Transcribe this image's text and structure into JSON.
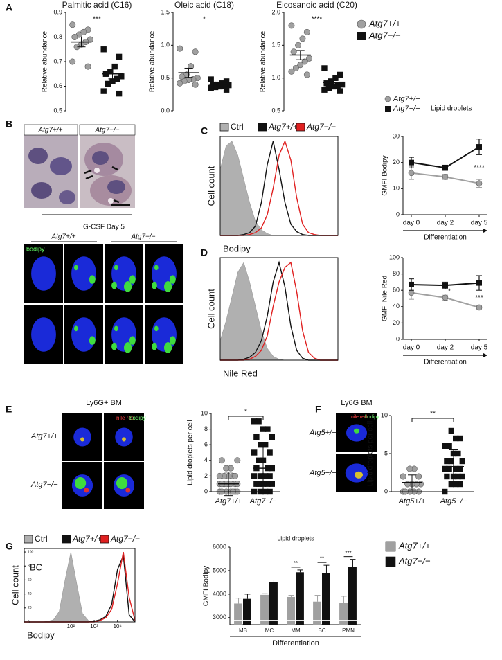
{
  "panel_labels": [
    "A",
    "B",
    "C",
    "D",
    "E",
    "F",
    "G"
  ],
  "figure_text": {
    "B_genotypes": [
      "Atg7+/+",
      "Atg7−/−"
    ],
    "B_caption": "G-CSF Day 5",
    "B_confocal_genotypes": [
      "Atg7+/+",
      "Atg7−/−"
    ],
    "B_stain": "bodipy",
    "E_title": "Ly6G+ BM",
    "E_stains": [
      "nile red",
      "bodipy"
    ],
    "E_rows": [
      "Atg7+/+",
      "Atg7−/−"
    ],
    "F_title": "Ly6G BM",
    "F_stains": [
      "nile red",
      "bodipy"
    ],
    "F_rows": [
      "Atg5+/+",
      "Atg5−/−"
    ]
  },
  "chart_data": [
    {
      "type": "strip",
      "title": "Palmitic acid (C16)",
      "y_label": "Relative abundance",
      "significance": "***",
      "ylim": [
        0.5,
        0.9
      ],
      "yticks": [
        0.5,
        0.6,
        0.7,
        0.8,
        0.9
      ],
      "series": [
        {
          "name": "Atg7+/+",
          "color": "#a0a0a0",
          "marker": "circle",
          "values": [
            0.85,
            0.83,
            0.82,
            0.81,
            0.8,
            0.79,
            0.78,
            0.77,
            0.76,
            0.7,
            0.68
          ],
          "mean": 0.78,
          "error": 0.02
        },
        {
          "name": "Atg7−/−",
          "color": "#111111",
          "marker": "square",
          "values": [
            0.75,
            0.72,
            0.68,
            0.66,
            0.65,
            0.64,
            0.63,
            0.62,
            0.61,
            0.58,
            0.57
          ],
          "mean": 0.65,
          "error": 0.02
        }
      ]
    },
    {
      "type": "strip",
      "title": "Oleic acid (C18)",
      "y_label": "Relative abundance",
      "significance": "*",
      "ylim": [
        0,
        1.5
      ],
      "yticks": [
        {
          "value": 0,
          "label": "0.0"
        },
        0.5,
        {
          "value": 1,
          "label": "1.0"
        },
        1.5
      ],
      "series": [
        {
          "color": "#a0a0a0",
          "marker": "circle",
          "values": [
            0.95,
            0.9,
            0.68,
            0.55,
            0.52,
            0.5,
            0.48,
            0.47,
            0.45,
            0.42,
            0.4
          ],
          "mean": 0.58,
          "error": 0.07
        },
        {
          "color": "#111111",
          "marker": "square",
          "values": [
            0.48,
            0.45,
            0.42,
            0.4,
            0.4,
            0.39,
            0.38,
            0.37,
            0.36,
            0.35,
            0.32
          ],
          "mean": 0.4,
          "error": 0.02
        }
      ]
    },
    {
      "type": "strip",
      "title": "Eicosanoic acid (C20)",
      "y_label": "Relative abundance",
      "significance": "****",
      "ylim": [
        0.5,
        2
      ],
      "yticks": [
        0.5,
        {
          "value": 1,
          "label": "1.0"
        },
        1.5,
        {
          "value": 2,
          "label": "2.0"
        }
      ],
      "series": [
        {
          "color": "#a0a0a0",
          "marker": "circle",
          "values": [
            1.8,
            1.7,
            1.6,
            1.5,
            1.4,
            1.3,
            1.25,
            1.2,
            1.15,
            1.1,
            1.05
          ],
          "mean": 1.35,
          "error": 0.07
        },
        {
          "color": "#111111",
          "marker": "square",
          "values": [
            1.15,
            1.05,
            1.0,
            0.95,
            0.92,
            0.9,
            0.88,
            0.87,
            0.85,
            0.82,
            0.8
          ],
          "mean": 0.93,
          "error": 0.03
        }
      ]
    },
    {
      "type": "histogram",
      "x_label": "Bodipy",
      "y_label": "Cell count",
      "xlim": [
        0,
        5
      ],
      "ylim": [
        0,
        105
      ],
      "x": [
        0,
        0.25,
        0.5,
        0.75,
        1,
        1.25,
        1.5,
        1.75,
        2,
        2.25,
        2.5,
        2.75,
        3,
        3.25,
        3.5,
        3.75,
        4,
        4.25,
        4.5,
        4.75,
        5
      ],
      "series": [
        {
          "name": "Ctrl",
          "color": "#b0b0b0",
          "fill": true,
          "values": [
            70,
            95,
            100,
            85,
            60,
            35,
            15,
            6,
            2,
            0,
            0,
            0,
            0,
            0,
            0,
            0,
            0,
            0,
            0,
            0,
            0
          ]
        },
        {
          "name": "Atg7+/+",
          "color": "#111111",
          "values": [
            0,
            0,
            0,
            0,
            1,
            3,
            10,
            35,
            75,
            100,
            70,
            35,
            12,
            4,
            1,
            0,
            0,
            0,
            0,
            0,
            0
          ]
        },
        {
          "name": "Atg7−/−",
          "color": "#e02020",
          "values": [
            0,
            0,
            0,
            0,
            0,
            1,
            3,
            8,
            22,
            50,
            85,
            100,
            80,
            40,
            12,
            3,
            1,
            0,
            0,
            0,
            0
          ]
        }
      ]
    },
    {
      "type": "line",
      "y_label": "GMFI Bodipy",
      "x_label": "Differentiation",
      "legend_note": "Lipid droplets",
      "categories": [
        "day 0",
        "day 2",
        "day 5"
      ],
      "ylim": [
        0,
        30
      ],
      "yticks": [
        0,
        10,
        20,
        30
      ],
      "series": [
        {
          "name": "Atg7+/+",
          "color": "#a0a0a0",
          "marker": "circle",
          "values": [
            16,
            14.5,
            12
          ],
          "errors": [
            2.5,
            1,
            1.5
          ]
        },
        {
          "name": "Atg7−/−",
          "color": "#111111",
          "marker": "square",
          "values": [
            20,
            18,
            26
          ],
          "errors": [
            2,
            1,
            3
          ]
        }
      ],
      "annotations": [
        {
          "text": "****",
          "category": 2
        }
      ]
    },
    {
      "type": "histogram",
      "x_label": "Nile Red",
      "y_label": "Cell count",
      "xlim": [
        0,
        5
      ],
      "ylim": [
        0,
        105
      ],
      "x": [
        0,
        0.25,
        0.5,
        0.75,
        1,
        1.25,
        1.5,
        1.75,
        2,
        2.25,
        2.5,
        2.75,
        3,
        3.25,
        3.5,
        3.75,
        4,
        4.25,
        4.5,
        4.75,
        5
      ],
      "series": [
        {
          "color": "#b0b0b0",
          "fill": true,
          "values": [
            20,
            40,
            65,
            90,
            100,
            80,
            55,
            30,
            12,
            4,
            1,
            0,
            0,
            0,
            0,
            0,
            0,
            0,
            0,
            0,
            0
          ]
        },
        {
          "color": "#111111",
          "values": [
            0,
            0,
            0,
            0,
            1,
            3,
            8,
            20,
            45,
            80,
            100,
            75,
            35,
            10,
            2,
            0,
            0,
            0,
            0,
            0,
            0
          ]
        },
        {
          "color": "#e02020",
          "values": [
            0,
            0,
            0,
            0,
            0,
            1,
            4,
            10,
            25,
            55,
            80,
            95,
            100,
            70,
            30,
            8,
            2,
            0,
            0,
            0,
            0
          ]
        }
      ]
    },
    {
      "type": "line",
      "y_label": "GMFI Nile Red",
      "x_label": "Differentiation",
      "categories": [
        "day 0",
        "day 2",
        "day 5"
      ],
      "ylim": [
        0,
        100
      ],
      "yticks": [
        0,
        20,
        40,
        60,
        80,
        100
      ],
      "series": [
        {
          "color": "#a0a0a0",
          "marker": "circle",
          "values": [
            57,
            51,
            39
          ],
          "errors": [
            8,
            3,
            2
          ]
        },
        {
          "color": "#111111",
          "marker": "square",
          "values": [
            67,
            66,
            69
          ],
          "errors": [
            7,
            4,
            9
          ]
        }
      ],
      "annotations": [
        {
          "text": "*",
          "category": 1
        },
        {
          "text": "***",
          "category": 2
        }
      ]
    },
    {
      "type": "strip",
      "y_label": "Lipid droplets per cell",
      "significance": "*",
      "categories": [
        "Atg7+/+",
        "Atg7−/−"
      ],
      "ylim": [
        0,
        10
      ],
      "yticks": [
        0,
        2,
        4,
        6,
        8,
        10
      ],
      "series": [
        {
          "color": "#a0a0a0",
          "marker": "circle",
          "values": [
            0,
            0,
            0,
            0,
            0,
            0,
            0,
            1,
            1,
            1,
            1,
            1,
            1,
            1,
            1,
            2,
            2,
            2,
            2,
            2,
            3,
            3,
            4,
            4
          ],
          "mean": 1,
          "error": 1.5
        },
        {
          "color": "#111111",
          "marker": "square",
          "values": [
            0,
            0,
            0,
            0,
            1,
            1,
            1,
            1,
            1,
            2,
            2,
            2,
            2,
            3,
            3,
            3,
            4,
            4,
            5,
            5,
            6,
            6,
            7,
            7,
            8,
            8,
            9,
            9
          ],
          "mean": 3,
          "error": 3
        }
      ]
    },
    {
      "type": "strip",
      "y_label": "Lipid droplets per cell",
      "significance": "**",
      "categories": [
        "Atg5+/+",
        "Atg5−/−"
      ],
      "ylim": [
        0,
        10
      ],
      "yticks": [
        0,
        5,
        10
      ],
      "series": [
        {
          "color": "#a0a0a0",
          "marker": "circle",
          "values": [
            0,
            0,
            0,
            0,
            0,
            1,
            1,
            1,
            1,
            2,
            2,
            3,
            3
          ],
          "mean": 1.2,
          "error": 1
        },
        {
          "color": "#111111",
          "marker": "square",
          "values": [
            0,
            1,
            1,
            1,
            2,
            2,
            2,
            2,
            3,
            3,
            3,
            3,
            4,
            4,
            4,
            5,
            5,
            6,
            6,
            7,
            7,
            8
          ],
          "mean": 3.3,
          "error": 2.2
        }
      ]
    },
    {
      "type": "histogram",
      "x_label": "Bodipy",
      "y_label": "Cell count",
      "label": "BC",
      "xlim": [
        0,
        4.75
      ],
      "ylim": [
        0,
        105
      ],
      "yticks": [
        0,
        20,
        40,
        60,
        80,
        100
      ],
      "xticks": [
        {
          "value": 2,
          "label": "10²"
        },
        {
          "value": 3,
          "label": "10³"
        },
        {
          "value": 4,
          "label": "10⁴"
        }
      ],
      "x": [
        0,
        0.25,
        0.5,
        0.75,
        1,
        1.25,
        1.5,
        1.75,
        2,
        2.25,
        2.5,
        2.75,
        3,
        3.25,
        3.5,
        3.75,
        4,
        4.25,
        4.5,
        4.75
      ],
      "series": [
        {
          "name": "Ctrl",
          "color": "#b0b0b0",
          "fill": true,
          "values": [
            0,
            0,
            0,
            0,
            1,
            3,
            15,
            60,
            100,
            55,
            12,
            2,
            0,
            0,
            0,
            0,
            0,
            0,
            0,
            0
          ]
        },
        {
          "name": "Atg7+/+",
          "color": "#111111",
          "values": [
            0,
            0,
            0,
            0,
            0,
            0,
            0,
            0,
            0,
            0,
            0,
            0,
            1,
            3,
            8,
            25,
            75,
            95,
            10,
            0
          ]
        },
        {
          "name": "Atg7−/−",
          "color": "#e02020",
          "values": [
            0,
            0,
            0,
            0,
            0,
            0,
            0,
            0,
            0,
            0,
            0,
            0,
            0,
            2,
            6,
            18,
            55,
            100,
            35,
            2
          ]
        }
      ]
    },
    {
      "type": "bar",
      "title": "Lipid droplets",
      "y_label": "GMFI Bodipy",
      "x_label": "Differentiation",
      "categories": [
        "MB",
        "MC",
        "MM",
        "BC",
        "PMN"
      ],
      "ylim": [
        2700,
        6000
      ],
      "yticks": [
        3000,
        4000,
        5000,
        6000
      ],
      "series": [
        {
          "name": "Atg7+/+",
          "color": "#a0a0a0",
          "values": [
            3600,
            3970,
            3880,
            3680,
            3630
          ],
          "errors": [
            230,
            50,
            70,
            270,
            280
          ]
        },
        {
          "name": "Atg7−/−",
          "color": "#111111",
          "values": [
            3800,
            4520,
            4930,
            4900,
            5150
          ],
          "errors": [
            200,
            80,
            100,
            330,
            330
          ]
        }
      ],
      "annotations": [
        {
          "text": "**",
          "category": 2
        },
        {
          "text": "**",
          "category": 3
        },
        {
          "text": "***",
          "category": 4
        }
      ]
    }
  ]
}
